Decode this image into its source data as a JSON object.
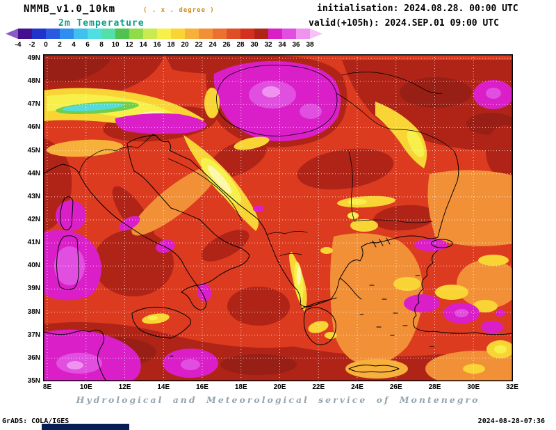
{
  "header": {
    "model": "NMMB_v1.0_10km",
    "grid_note": "( . x . degree )",
    "variable": "2m Temperature",
    "init": "initialisation: 2024.08.28. 00:00 UTC",
    "valid": "valid(+105h): 2024.SEP.01 09:00 UTC"
  },
  "colorbar": {
    "tick_labels": [
      "-4",
      "-2",
      "0",
      "2",
      "4",
      "6",
      "8",
      "10",
      "12",
      "14",
      "16",
      "18",
      "20",
      "22",
      "24",
      "26",
      "28",
      "30",
      "32",
      "34",
      "36",
      "38"
    ],
    "cell_colors": [
      "#44108f",
      "#2233cc",
      "#2a5ae0",
      "#2f8df0",
      "#3fc0f0",
      "#4fdfe0",
      "#52e0a8",
      "#4fc24f",
      "#8fdc48",
      "#c8ec50",
      "#f8f04a",
      "#f8d435",
      "#f7b03a",
      "#f29038",
      "#ec7030",
      "#e04e28",
      "#d43020",
      "#b02418",
      "#da1fc8",
      "#e14fe1",
      "#ef93ef"
    ],
    "left_arrow_color": "#8a5bc8",
    "right_arrow_color": "#f6c2f6"
  },
  "map": {
    "lat_labels": [
      "49N",
      "48N",
      "47N",
      "46N",
      "45N",
      "44N",
      "43N",
      "42N",
      "41N",
      "40N",
      "39N",
      "38N",
      "37N",
      "36N",
      "35N"
    ],
    "lon_labels": [
      "8E",
      "10E",
      "12E",
      "14E",
      "16E",
      "18E",
      "20E",
      "22E",
      "24E",
      "26E",
      "28E",
      "30E",
      "32E"
    ]
  },
  "footer": {
    "service": "Hydrological and Meteorological service of Montenegro",
    "grads": "GrADS: COLA/IGES",
    "timestamp": "2024-08-28-07:36"
  },
  "colors": {
    "variable_accent": "#0b9b8a",
    "grid_note_accent": "#d28a1e",
    "service_text": "#95a5b0",
    "footer_bar": "#081c55",
    "map_base_red": "#dd3b20",
    "hot_dark_red": "#b02418",
    "hotspot_magenta": "#da1fc8",
    "cool_cyan": "#55dcd8"
  }
}
